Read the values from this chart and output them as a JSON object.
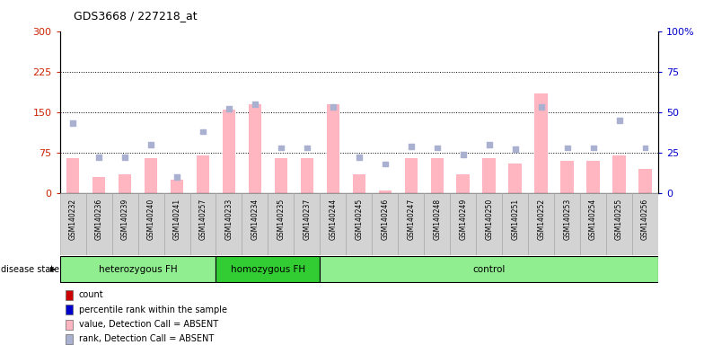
{
  "title": "GDS3668 / 227218_at",
  "samples": [
    "GSM140232",
    "GSM140236",
    "GSM140239",
    "GSM140240",
    "GSM140241",
    "GSM140257",
    "GSM140233",
    "GSM140234",
    "GSM140235",
    "GSM140237",
    "GSM140244",
    "GSM140245",
    "GSM140246",
    "GSM140247",
    "GSM140248",
    "GSM140249",
    "GSM140250",
    "GSM140251",
    "GSM140252",
    "GSM140253",
    "GSM140254",
    "GSM140255",
    "GSM140256"
  ],
  "bar_values": [
    65,
    30,
    35,
    65,
    25,
    70,
    155,
    165,
    65,
    65,
    165,
    35,
    5,
    65,
    65,
    35,
    65,
    55,
    185,
    60,
    60,
    70,
    45
  ],
  "rank_values": [
    43,
    22,
    22,
    30,
    10,
    38,
    52,
    55,
    28,
    28,
    53,
    22,
    18,
    29,
    28,
    24,
    30,
    27,
    53,
    28,
    28,
    45,
    28
  ],
  "absent_bar": [
    true,
    true,
    true,
    true,
    true,
    true,
    true,
    true,
    true,
    true,
    true,
    true,
    true,
    true,
    true,
    true,
    true,
    true,
    true,
    true,
    true,
    true,
    true
  ],
  "absent_rank": [
    true,
    true,
    true,
    true,
    true,
    true,
    true,
    true,
    true,
    true,
    true,
    true,
    true,
    true,
    true,
    true,
    true,
    true,
    true,
    true,
    true,
    true,
    true
  ],
  "groups": [
    {
      "label": "heterozygous FH",
      "start": 0,
      "end": 6,
      "color": "#90ee90"
    },
    {
      "label": "homozygous FH",
      "start": 6,
      "end": 10,
      "color": "#32cd32"
    },
    {
      "label": "control",
      "start": 10,
      "end": 23,
      "color": "#90ee90"
    }
  ],
  "ylim_left": [
    0,
    300
  ],
  "ylim_right": [
    0,
    100
  ],
  "yticks_left": [
    0,
    75,
    150,
    225,
    300
  ],
  "yticks_right": [
    0,
    25,
    50,
    75,
    100
  ],
  "hlines": [
    75,
    150,
    225
  ],
  "bar_color_absent": "#ffb6c1",
  "bar_color_present": "#ff0000",
  "rank_color_absent": "#aab0d0",
  "rank_color_present": "#0000ff",
  "bar_width": 0.5,
  "plot_bg_color": "#ffffff",
  "xticklabel_bg": "#d0d0d0",
  "ylabel_left_color": "#cc2200",
  "ylabel_right_color": "#0000cc",
  "legend_items": [
    {
      "label": "count",
      "color": "#cc0000"
    },
    {
      "label": "percentile rank within the sample",
      "color": "#0000cc"
    },
    {
      "label": "value, Detection Call = ABSENT",
      "color": "#ffb6c1"
    },
    {
      "label": "rank, Detection Call = ABSENT",
      "color": "#aab0d0"
    }
  ]
}
